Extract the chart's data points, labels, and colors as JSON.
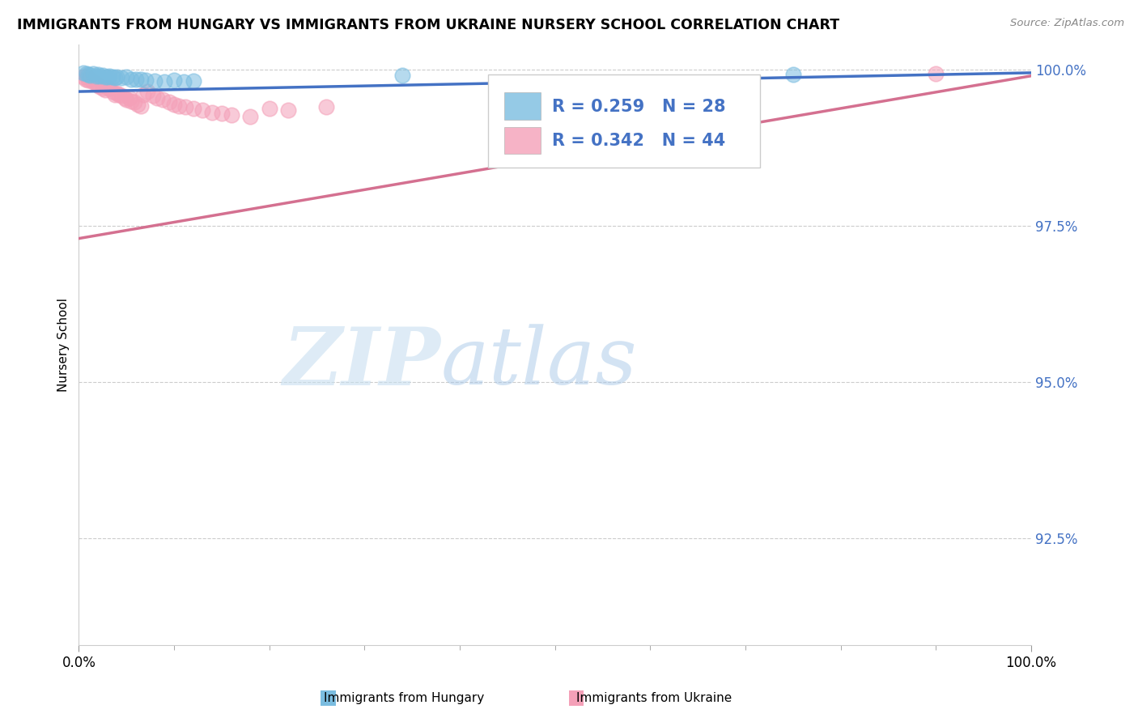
{
  "title": "IMMIGRANTS FROM HUNGARY VS IMMIGRANTS FROM UKRAINE NURSERY SCHOOL CORRELATION CHART",
  "source_text": "Source: ZipAtlas.com",
  "ylabel": "Nursery School",
  "xlim": [
    0.0,
    1.0
  ],
  "ylim": [
    0.908,
    1.004
  ],
  "ytick_positions": [
    0.925,
    0.95,
    0.975,
    1.0
  ],
  "ytick_labels": [
    "92.5%",
    "95.0%",
    "97.5%",
    "100.0%"
  ],
  "hungary_color": "#7bbde0",
  "ukraine_color": "#f4a0b8",
  "hungary_line_color": "#4472c4",
  "ukraine_line_color": "#d47090",
  "hungary_R": 0.259,
  "hungary_N": 28,
  "ukraine_R": 0.342,
  "ukraine_N": 44,
  "legend_label_hungary": "Immigrants from Hungary",
  "legend_label_ukraine": "Immigrants from Ukraine",
  "watermark_zip": "ZIP",
  "watermark_atlas": "atlas",
  "hungary_x": [
    0.005,
    0.008,
    0.01,
    0.012,
    0.015,
    0.018,
    0.02,
    0.022,
    0.025,
    0.028,
    0.03,
    0.032,
    0.035,
    0.038,
    0.04,
    0.045,
    0.05,
    0.055,
    0.06,
    0.065,
    0.07,
    0.08,
    0.09,
    0.1,
    0.11,
    0.12,
    0.34,
    0.75
  ],
  "hungary_y": [
    0.9995,
    0.9993,
    0.9992,
    0.9991,
    0.9993,
    0.999,
    0.9992,
    0.999,
    0.9991,
    0.9989,
    0.9988,
    0.999,
    0.9988,
    0.9987,
    0.9988,
    0.9987,
    0.9988,
    0.9985,
    0.9985,
    0.9984,
    0.9983,
    0.9982,
    0.998,
    0.9983,
    0.998,
    0.9982,
    0.9991,
    0.9992
  ],
  "ukraine_x": [
    0.005,
    0.007,
    0.008,
    0.01,
    0.012,
    0.015,
    0.018,
    0.02,
    0.022,
    0.025,
    0.028,
    0.03,
    0.032,
    0.035,
    0.038,
    0.04,
    0.042,
    0.045,
    0.048,
    0.05,
    0.053,
    0.055,
    0.058,
    0.062,
    0.065,
    0.068,
    0.072,
    0.078,
    0.082,
    0.088,
    0.095,
    0.1,
    0.105,
    0.112,
    0.12,
    0.13,
    0.14,
    0.15,
    0.16,
    0.18,
    0.2,
    0.22,
    0.26,
    0.9
  ],
  "ukraine_y": [
    0.9988,
    0.9985,
    0.999,
    0.9983,
    0.9985,
    0.998,
    0.9978,
    0.9975,
    0.9973,
    0.997,
    0.9968,
    0.9972,
    0.997,
    0.9965,
    0.996,
    0.9962,
    0.996,
    0.9958,
    0.9955,
    0.9952,
    0.9955,
    0.995,
    0.9948,
    0.9945,
    0.9942,
    0.996,
    0.9965,
    0.9958,
    0.9955,
    0.9952,
    0.9948,
    0.9945,
    0.9942,
    0.994,
    0.9938,
    0.9935,
    0.9932,
    0.993,
    0.9928,
    0.9925,
    0.9938,
    0.9935,
    0.994,
    0.9993
  ],
  "hungary_trendline_x": [
    0.0,
    1.0
  ],
  "hungary_trendline_y": [
    0.9965,
    0.9995
  ],
  "ukraine_trendline_x": [
    0.0,
    1.0
  ],
  "ukraine_trendline_y": [
    0.973,
    0.999
  ]
}
